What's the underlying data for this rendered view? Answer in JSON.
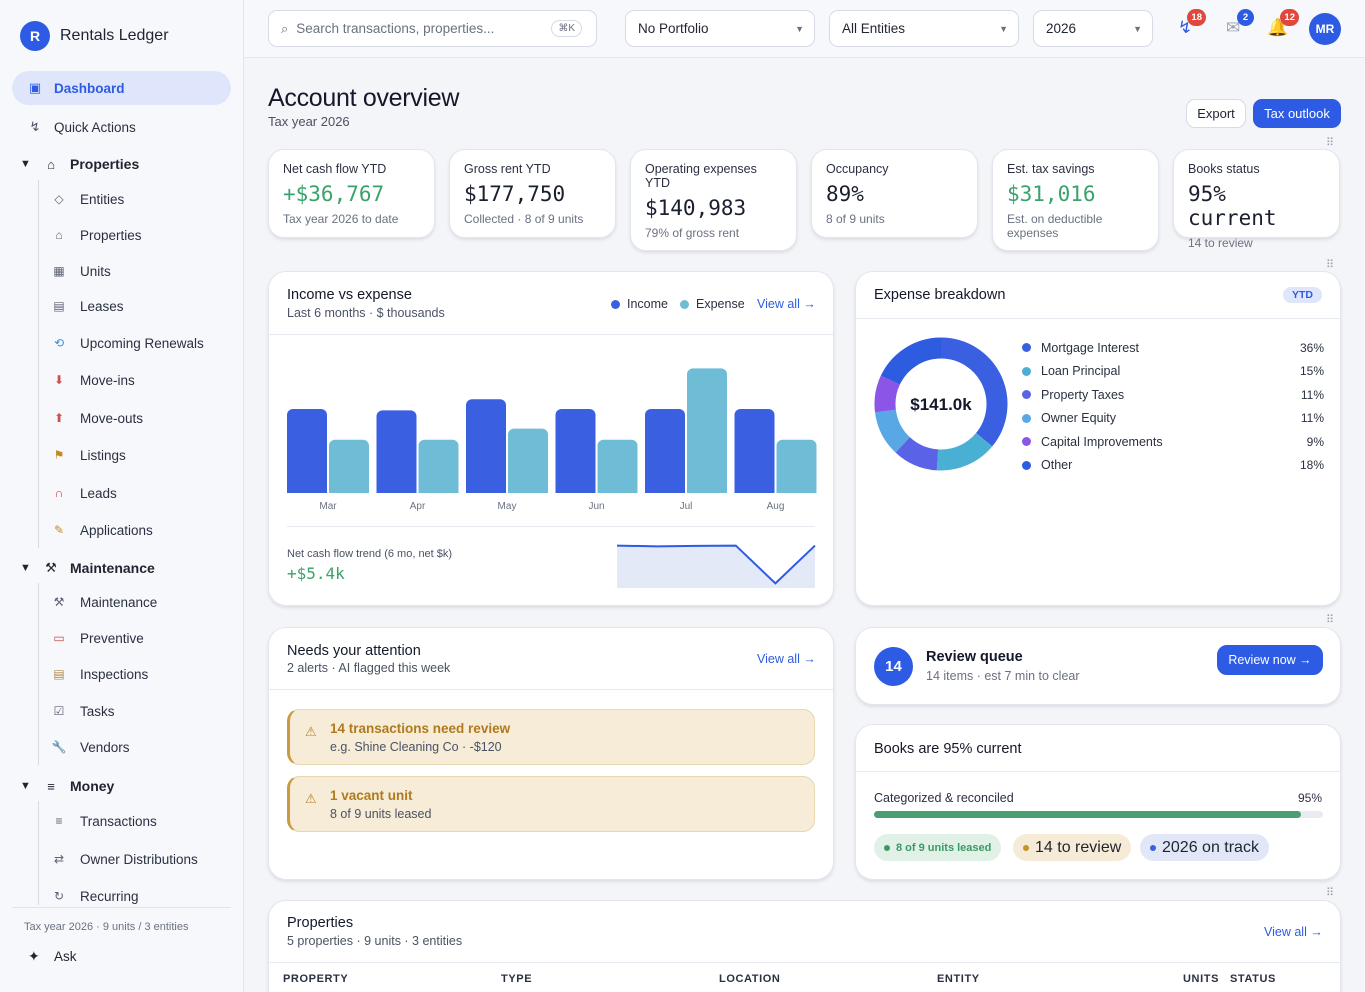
{
  "app": {
    "brand_initial": "R",
    "brand_name": "Rentals Ledger"
  },
  "sidebar": {
    "dashboard": "Dashboard",
    "quick_actions": "Quick Actions",
    "groups": {
      "properties": {
        "label": "Properties",
        "items": [
          "Entities",
          "Properties",
          "Units",
          "Leases",
          "Upcoming Renewals",
          "Move-ins",
          "Move-outs",
          "Listings",
          "Leads",
          "Applications"
        ]
      },
      "maintenance": {
        "label": "Maintenance",
        "items": [
          "Maintenance",
          "Preventive",
          "Inspections",
          "Tasks",
          "Vendors"
        ]
      },
      "money": {
        "label": "Money",
        "items": [
          "Transactions",
          "Owner Distributions",
          "Recurring"
        ]
      }
    },
    "footer": "Tax year 2026 · 9 units / 3 entities",
    "ask": "Ask"
  },
  "topbar": {
    "search_placeholder": "Search transactions, properties...",
    "search_shortcut": "⌘K",
    "portfolio": "No Portfolio",
    "entities": "All Entities",
    "year": "2026",
    "badges": {
      "activity": "18",
      "mail": "2",
      "notifications": "12"
    },
    "avatar": "MR"
  },
  "header": {
    "title": "Account overview",
    "subtitle": "Tax year 2026",
    "export": "Export",
    "tax_outlook": "Tax outlook"
  },
  "kpis": [
    {
      "label": "Net cash flow YTD",
      "value": "+$36,767",
      "sub": "Tax year 2026 to date"
    },
    {
      "label": "Gross rent YTD",
      "value": "$177,750",
      "sub": "Collected · 8 of 9 units"
    },
    {
      "label": "Operating expenses YTD",
      "value": "$140,983",
      "sub": "79% of gross rent"
    },
    {
      "label": "Occupancy",
      "value": "89%",
      "sub": "8 of 9 units"
    },
    {
      "label": "Est. tax savings",
      "value": "$31,016",
      "sub": "Est. on deductible expenses"
    },
    {
      "label": "Books status",
      "value": "95% current",
      "sub": "14 to review"
    }
  ],
  "income_card": {
    "title": "Income vs expense",
    "subtitle": "Last 6 months · $ thousands",
    "view_all": "View all →",
    "trend_label": "Net cash flow trend (6 mo, net $k)",
    "trend_value": "+$5.4k"
  },
  "colors": {
    "income": "#3a5fe0",
    "expense": "#6fbcd6",
    "accent": "#2d5be3",
    "positive": "#3aa26a"
  },
  "chart_data": [
    {
      "type": "bar",
      "categories": [
        "Mar",
        "Apr",
        "May",
        "Jun",
        "Jul",
        "Aug"
      ],
      "series": [
        {
          "name": "Income",
          "values": [
            30,
            29.5,
            33.5,
            30,
            30,
            30
          ]
        },
        {
          "name": "Expense",
          "values": [
            19,
            19,
            23,
            19,
            44.5,
            19
          ]
        }
      ],
      "ylim": [
        0,
        50
      ],
      "legend": "top-right",
      "grid": false
    },
    {
      "type": "area",
      "series": [
        {
          "values": [
            5.4,
            5.1,
            5.3,
            5.4,
            -9.0,
            5.4
          ]
        }
      ],
      "ylim": [
        -10,
        6
      ]
    },
    {
      "type": "pie",
      "title": "Expense breakdown",
      "center_value": "$141.0k",
      "labels": [
        "Mortgage Interest",
        "Loan Principal",
        "Property Taxes",
        "Owner Equity",
        "Capital Improvements",
        "Other"
      ],
      "values": [
        36,
        15,
        11,
        11,
        9,
        18
      ],
      "display": [
        "36%",
        "15%",
        "11%",
        "11%",
        "9%",
        "18%"
      ],
      "colors": [
        "#3a5fe0",
        "#4ab0d3",
        "#5a63e6",
        "#58a8e6",
        "#8b55e8",
        "#2e5ce0"
      ]
    }
  ],
  "expense_card": {
    "title": "Expense breakdown",
    "badge": "YTD"
  },
  "attention": {
    "title": "Needs your attention",
    "subtitle": "2 alerts · AI flagged this week",
    "view_all": "View all →",
    "alerts": [
      {
        "title": "14 transactions need review",
        "sub": "e.g. Shine Cleaning Co · -$120"
      },
      {
        "title": "1 vacant unit",
        "sub": "8 of 9 units leased"
      }
    ]
  },
  "review_queue": {
    "count": "14",
    "title": "Review queue",
    "sub": "14 items · est 7 min to clear",
    "button": "Review now →"
  },
  "books": {
    "title": "Books are 95% current",
    "progress_label": "Categorized & reconciled",
    "progress_value": "95%",
    "progress": 0.95,
    "pills": [
      "8 of 9 units leased",
      "14 to review",
      "2026 on track"
    ]
  },
  "properties": {
    "title": "Properties",
    "subtitle": "5 properties · 9 units · 3 entities",
    "view_all": "View all →",
    "columns": [
      "PROPERTY",
      "TYPE",
      "LOCATION",
      "ENTITY",
      "UNITS",
      "STATUS"
    ]
  }
}
